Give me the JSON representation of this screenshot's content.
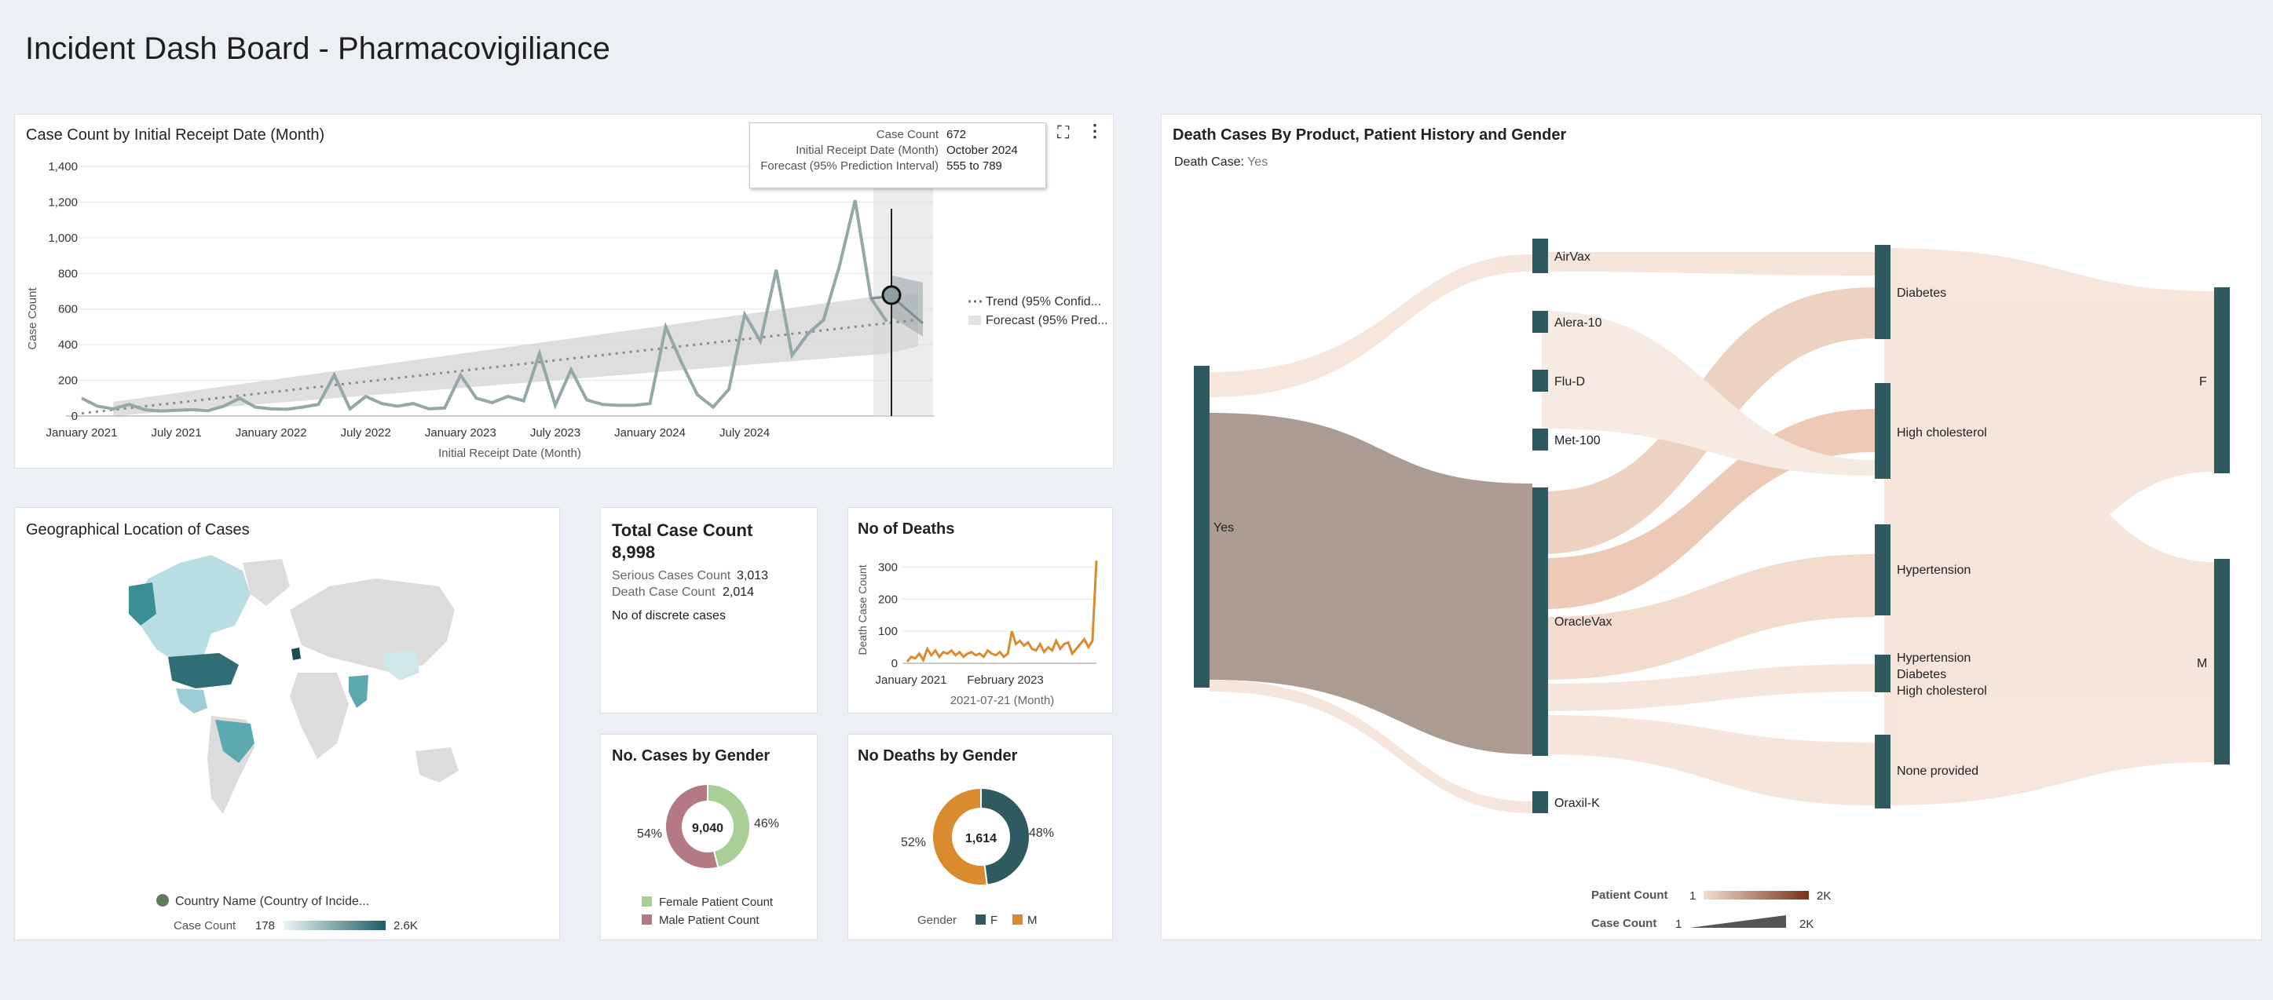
{
  "page": {
    "title": "Incident Dash Board - Pharmacovigiliance"
  },
  "trend": {
    "title": "Case Count by Initial Receipt Date (Month)",
    "ylabel": "Case Count",
    "xlabel": "Initial Receipt Date (Month)",
    "yticks": [
      "1,400",
      "1,200",
      "1,000",
      "800",
      "600",
      "400",
      "200",
      "0"
    ],
    "xticks": [
      "January 2021",
      "July 2021",
      "January 2022",
      "July 2022",
      "January 2023",
      "July 2023",
      "January 2024",
      "July 2024"
    ],
    "legend": {
      "trend": "Trend (95% Confid...",
      "forecast": "Forecast (95% Pred..."
    },
    "tooltip": {
      "k1": "Case Count",
      "v1": "672",
      "k2": "Initial Receipt Date (Month)",
      "v2": "October 2024",
      "k3": "Forecast (95% Prediction Interval)",
      "v3": "555 to 789"
    }
  },
  "chart_data": [
    {
      "type": "line",
      "title": "Case Count by Initial Receipt Date (Month)",
      "xlabel": "Initial Receipt Date (Month)",
      "ylabel": "Case Count",
      "ylim": [
        0,
        1400
      ],
      "x_start": "January 2021",
      "values": [
        100,
        55,
        40,
        65,
        35,
        28,
        32,
        35,
        30,
        55,
        100,
        50,
        40,
        38,
        50,
        65,
        230,
        40,
        110,
        70,
        55,
        70,
        40,
        45,
        230,
        100,
        75,
        110,
        85,
        350,
        60,
        260,
        90,
        65,
        60,
        60,
        70,
        500,
        300,
        120,
        50,
        150,
        570,
        420,
        820,
        340,
        460,
        540,
        840,
        1210,
        660,
        530
      ],
      "trend": {
        "start": 15,
        "end": 520
      },
      "forecast": {
        "month": "October 2024",
        "value": 672,
        "interval": [
          555,
          789
        ]
      },
      "legend": [
        "Trend (95% Confid...",
        "Forecast (95% Pred..."
      ]
    },
    {
      "type": "line",
      "title": "No of Deaths",
      "xlabel": "2021-07-21 (Month)",
      "ylabel": "Death Case Count",
      "ylim": [
        0,
        350
      ],
      "values": [
        5,
        20,
        15,
        30,
        10,
        45,
        25,
        40,
        20,
        35,
        30,
        40,
        25,
        35,
        20,
        30,
        35,
        25,
        30,
        20,
        40,
        30,
        25,
        35,
        20,
        30,
        100,
        60,
        70,
        55,
        65,
        45,
        40,
        60,
        35,
        50,
        40,
        70,
        45,
        60,
        65,
        30,
        45,
        60,
        75,
        50,
        70,
        320
      ]
    },
    {
      "type": "pie",
      "title": "No. Cases by Gender",
      "total": "9,040",
      "slices": [
        {
          "name": "Female Patient Count",
          "pct": 46
        },
        {
          "name": "Male Patient Count",
          "pct": 54
        }
      ]
    },
    {
      "type": "pie",
      "title": "No Deaths by Gender",
      "total": "1,614",
      "slices": [
        {
          "name": "F",
          "pct": 48
        },
        {
          "name": "M",
          "pct": 52
        }
      ]
    }
  ],
  "geo": {
    "title": "Geographical Location of Cases",
    "legend_label": "Country Name (Country of Incide...",
    "scale_label": "Case Count",
    "scale_min": "178",
    "scale_max": "2.6K"
  },
  "kpi": {
    "title": "Total Case Count",
    "value": "8,998",
    "serious_label": "Serious Cases Count",
    "serious_value": "3,013",
    "death_label": "Death Case Count",
    "death_value": "2,014",
    "note": "No of discrete cases"
  },
  "deaths": {
    "title": "No of Deaths",
    "ylabel": "Death Case Count",
    "yticks": [
      "300",
      "200",
      "100",
      "0"
    ],
    "xticks": [
      "January 2021",
      "February 2023"
    ],
    "xlabel": "2021-07-21 (Month)"
  },
  "cases_gender": {
    "title": "No. Cases by Gender",
    "total": "9,040",
    "left_pct": "54%",
    "right_pct": "46%",
    "legend1": "Female Patient Count",
    "legend2": "Male Patient Count",
    "color_female": "#a9cf96",
    "color_male": "#b37a85"
  },
  "deaths_gender": {
    "title": "No Deaths by Gender",
    "total": "1,614",
    "left_pct": "52%",
    "right_pct": "48%",
    "legend_label": "Gender",
    "legend1": "F",
    "legend2": "M",
    "color_f": "#2f5a60",
    "color_m": "#d98b2e"
  },
  "sankey": {
    "title": "Death Cases By Product, Patient History and Gender",
    "filter_label": "Death Case:",
    "filter_value": "Yes",
    "root": "Yes",
    "products": [
      "AirVax",
      "Alera-10",
      "Flu-D",
      "Met-100",
      "OracleVax",
      "Oraxil-K"
    ],
    "history": [
      "Diabetes",
      "High cholesterol",
      "Hypertension",
      "Hypertension",
      "Diabetes",
      "High cholesterol",
      "None provided"
    ],
    "genders": [
      "F",
      "M"
    ],
    "legend": {
      "patient_label": "Patient Count",
      "patient_min": "1",
      "patient_max": "2K",
      "case_label": "Case Count",
      "case_min": "1",
      "case_max": "2K"
    }
  }
}
